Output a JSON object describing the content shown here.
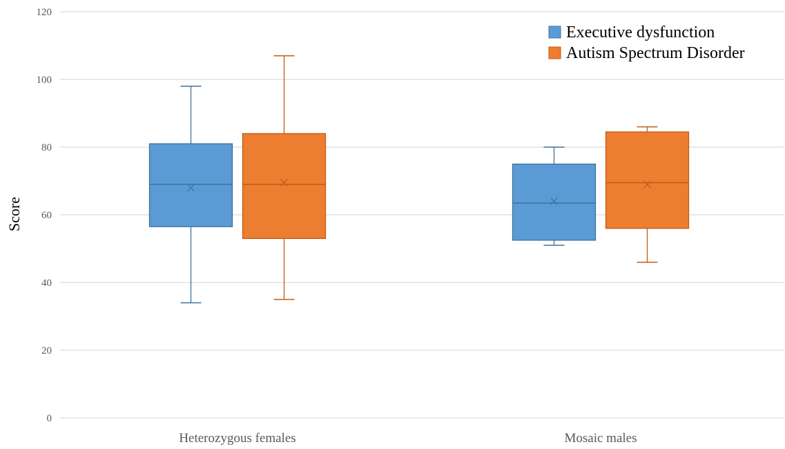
{
  "chart_data": {
    "type": "box",
    "title": "",
    "xlabel": "",
    "ylabel": "Score",
    "ylim": [
      0,
      120
    ],
    "yticks": [
      0,
      20,
      40,
      60,
      80,
      100,
      120
    ],
    "grid": true,
    "legend_position": "top-right",
    "categories": [
      "Heterozygous females",
      "Mosaic males"
    ],
    "series": [
      {
        "name": "Executive dysfunction",
        "color": "#5B9BD5",
        "stroke": "#41719C",
        "boxes": [
          {
            "min": 34,
            "q1": 56.5,
            "median": 69,
            "q3": 81,
            "max": 98,
            "mean": 68
          },
          {
            "min": 51,
            "q1": 52.5,
            "median": 63.5,
            "q3": 75,
            "max": 80,
            "mean": 64
          }
        ]
      },
      {
        "name": "Autism Spectrum Disorder",
        "color": "#ED7D31",
        "stroke": "#C55A11",
        "boxes": [
          {
            "min": 35,
            "q1": 53,
            "median": 69,
            "q3": 84,
            "max": 107,
            "mean": 69.5
          },
          {
            "min": 46,
            "q1": 56,
            "median": 69.5,
            "q3": 84.5,
            "max": 86,
            "mean": 69
          }
        ]
      }
    ]
  }
}
